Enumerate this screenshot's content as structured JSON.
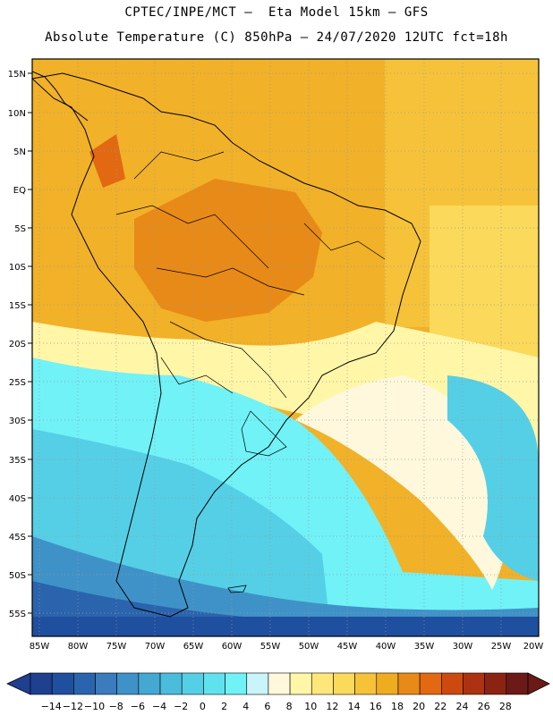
{
  "title_line1": "CPTEC/INPE/MCT –  Eta Model 15km – GFS",
  "title_line2": "Absolute Temperature (C) 850hPa – 24/07/2020 12UTC fct=18h",
  "lat_labels": [
    "15N",
    "10N",
    "5N",
    "EQ",
    "5S",
    "10S",
    "15S",
    "20S",
    "25S",
    "30S",
    "35S",
    "40S",
    "45S",
    "50S",
    "55S"
  ],
  "lon_labels": [
    "85W",
    "80W",
    "75W",
    "70W",
    "65W",
    "60W",
    "55W",
    "50W",
    "45W",
    "40W",
    "35W",
    "30W",
    "25W",
    "20W"
  ],
  "colorbar": {
    "labels": [
      "-14",
      "-12",
      "-10",
      "-8",
      "-6",
      "-4",
      "-2",
      "0",
      "2",
      "4",
      "6",
      "8",
      "10",
      "12",
      "14",
      "16",
      "18",
      "20",
      "22",
      "24",
      "26",
      "28"
    ],
    "colors": [
      "#1f3f8f",
      "#1f4f9f",
      "#2a64ad",
      "#3a7cbd",
      "#3f92c8",
      "#45a8d2",
      "#4cbcdc",
      "#55cfe6",
      "#60e2ee",
      "#70f2f7",
      "#c8f4fa",
      "#fff8dc",
      "#fff6a8",
      "#fde77a",
      "#fbd95a",
      "#f5c23a",
      "#efac1f",
      "#e88a17",
      "#e26812",
      "#cc4a10",
      "#ad3211",
      "#8a2312",
      "#6b1a17"
    ]
  }
}
